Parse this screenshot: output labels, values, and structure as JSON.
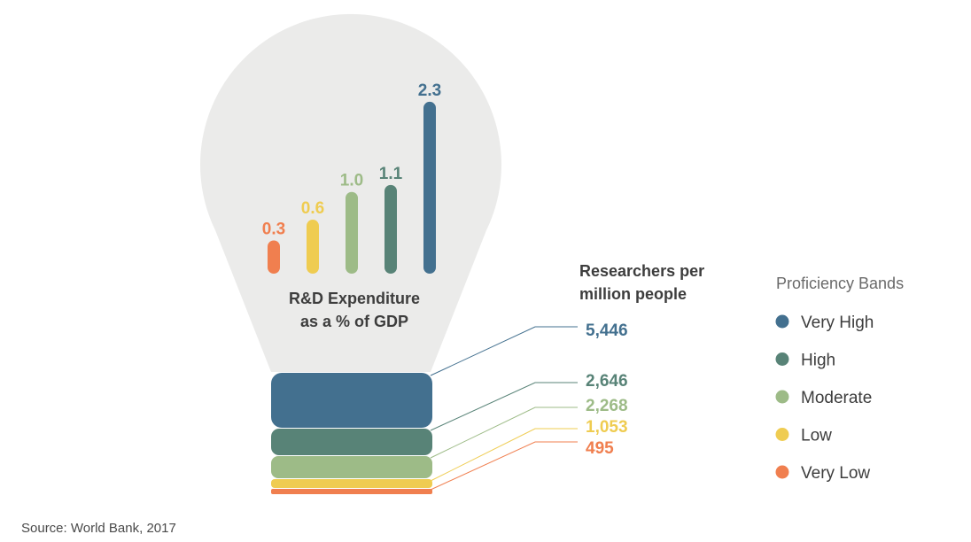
{
  "chart_data": {
    "type": "bar",
    "bands": [
      "Very Low",
      "Low",
      "Moderate",
      "High",
      "Very High"
    ],
    "colors": [
      "#f07f4f",
      "#efcc51",
      "#9dbb87",
      "#588377",
      "#43708f"
    ],
    "rd_expenditure": {
      "label_line1": "R&D Expenditure",
      "label_line2": "as a % of GDP",
      "values": [
        0.3,
        0.6,
        1.0,
        1.1,
        2.3
      ],
      "value_labels": [
        "0.3",
        "0.6",
        "1.0",
        "1.1",
        "2.3"
      ]
    },
    "researchers": {
      "title_line1": "Researchers per",
      "title_line2": "million people",
      "values": [
        495,
        1053,
        2268,
        2646,
        5446
      ],
      "value_labels": [
        "495",
        "1,053",
        "2,268",
        "2,646",
        "5,446"
      ]
    },
    "legend_title": "Proficiency Bands",
    "legend_order": [
      "Very High",
      "High",
      "Moderate",
      "Low",
      "Very Low"
    ],
    "source": "Source: World Bank, 2017"
  }
}
